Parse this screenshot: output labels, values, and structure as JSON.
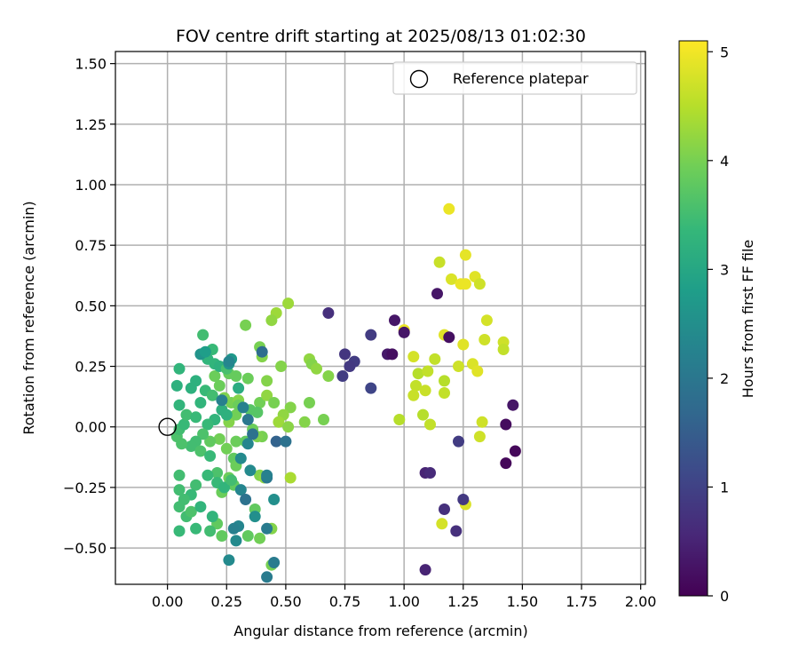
{
  "chart_data": {
    "type": "scatter",
    "title": "FOV centre drift starting at 2025/08/13 01:02:30",
    "xlabel": "Angular distance from reference (arcmin)",
    "ylabel": "Rotation from reference (arcmin)",
    "xlim": [
      -0.22,
      2.02
    ],
    "ylim": [
      -0.65,
      1.55
    ],
    "xticks": [
      0.0,
      0.25,
      0.5,
      0.75,
      1.0,
      1.25,
      1.5,
      1.75,
      2.0
    ],
    "yticks": [
      -0.5,
      -0.25,
      0.0,
      0.25,
      0.5,
      0.75,
      1.0,
      1.25,
      1.5
    ],
    "xtick_labels": [
      "0.00",
      "0.25",
      "0.50",
      "0.75",
      "1.00",
      "1.25",
      "1.50",
      "1.75",
      "2.00"
    ],
    "ytick_labels": [
      "−0.50",
      "−0.25",
      "0.00",
      "0.25",
      "0.50",
      "0.75",
      "1.00",
      "1.25",
      "1.50"
    ],
    "grid": true,
    "colormap": "viridis",
    "colorbar": {
      "label": "Hours from first FF file",
      "range": [
        0,
        5.1
      ],
      "ticks": [
        0,
        1,
        2,
        3,
        4,
        5
      ],
      "tick_labels": [
        "0",
        "1",
        "2",
        "3",
        "4",
        "5"
      ]
    },
    "legend": {
      "position": "upper-right",
      "entries": [
        {
          "label": "Reference platepar",
          "marker": "open-circle",
          "x": 0.0,
          "y": 0.0
        }
      ]
    },
    "series": [
      {
        "points": [
          [
            1.19,
            0.9,
            4.95
          ],
          [
            1.26,
            0.71,
            4.9
          ],
          [
            1.15,
            0.68,
            4.65
          ],
          [
            1.2,
            0.61,
            4.8
          ],
          [
            1.24,
            0.59,
            4.95
          ],
          [
            1.26,
            0.59,
            4.95
          ],
          [
            1.3,
            0.62,
            4.85
          ],
          [
            1.32,
            0.59,
            4.7
          ],
          [
            1.35,
            0.44,
            4.75
          ],
          [
            1.17,
            0.38,
            4.85
          ],
          [
            1.25,
            0.34,
            4.85
          ],
          [
            1.34,
            0.36,
            4.7
          ],
          [
            1.42,
            0.35,
            4.7
          ],
          [
            1.42,
            0.32,
            4.6
          ],
          [
            1.0,
            0.4,
            4.95
          ],
          [
            1.04,
            0.29,
            4.75
          ],
          [
            1.13,
            0.28,
            4.6
          ],
          [
            1.23,
            0.25,
            4.7
          ],
          [
            1.29,
            0.26,
            4.8
          ],
          [
            1.31,
            0.23,
            4.85
          ],
          [
            1.06,
            0.22,
            4.5
          ],
          [
            1.1,
            0.23,
            4.6
          ],
          [
            1.05,
            0.17,
            4.6
          ],
          [
            1.09,
            0.15,
            4.65
          ],
          [
            1.04,
            0.13,
            4.65
          ],
          [
            1.17,
            0.19,
            4.5
          ],
          [
            1.17,
            0.14,
            4.6
          ],
          [
            0.98,
            0.03,
            4.5
          ],
          [
            1.08,
            0.05,
            4.5
          ],
          [
            1.11,
            0.01,
            4.6
          ],
          [
            1.33,
            0.02,
            4.7
          ],
          [
            1.32,
            -0.04,
            4.7
          ],
          [
            1.26,
            -0.32,
            4.8
          ],
          [
            1.16,
            -0.4,
            4.75
          ],
          [
            1.19,
            0.37,
            0.2
          ],
          [
            1.14,
            0.55,
            0.3
          ],
          [
            0.96,
            0.44,
            0.3
          ],
          [
            0.93,
            0.3,
            0.35
          ],
          [
            0.95,
            0.3,
            0.2
          ],
          [
            1.0,
            0.39,
            0.3
          ],
          [
            1.46,
            0.09,
            0.3
          ],
          [
            1.43,
            0.01,
            0.15
          ],
          [
            1.47,
            -0.1,
            0.1
          ],
          [
            1.43,
            -0.15,
            0.1
          ],
          [
            1.23,
            -0.06,
            0.9
          ],
          [
            1.09,
            -0.19,
            0.5
          ],
          [
            1.11,
            -0.19,
            0.6
          ],
          [
            1.17,
            -0.34,
            0.7
          ],
          [
            1.25,
            -0.3,
            0.85
          ],
          [
            1.22,
            -0.43,
            0.7
          ],
          [
            1.09,
            -0.59,
            0.5
          ],
          [
            0.68,
            0.47,
            0.7
          ],
          [
            0.75,
            0.3,
            0.8
          ],
          [
            0.79,
            0.27,
            0.9
          ],
          [
            0.77,
            0.25,
            0.85
          ],
          [
            0.74,
            0.21,
            0.9
          ],
          [
            0.86,
            0.38,
            0.9
          ],
          [
            0.86,
            0.16,
            1.05
          ],
          [
            0.51,
            0.51,
            4.3
          ],
          [
            0.46,
            0.47,
            4.3
          ],
          [
            0.44,
            0.44,
            4.2
          ],
          [
            0.33,
            0.42,
            4.0
          ],
          [
            0.6,
            0.28,
            4.2
          ],
          [
            0.61,
            0.26,
            4.1
          ],
          [
            0.63,
            0.24,
            4.2
          ],
          [
            0.68,
            0.21,
            4.1
          ],
          [
            0.48,
            0.25,
            4.1
          ],
          [
            0.39,
            0.33,
            4.0
          ],
          [
            0.4,
            0.29,
            4.1
          ],
          [
            0.34,
            0.2,
            3.9
          ],
          [
            0.39,
            0.1,
            3.95
          ],
          [
            0.42,
            0.19,
            4.1
          ],
          [
            0.42,
            0.13,
            4.2
          ],
          [
            0.45,
            0.1,
            4.0
          ],
          [
            0.52,
            0.08,
            4.1
          ],
          [
            0.49,
            0.05,
            4.2
          ],
          [
            0.47,
            0.02,
            4.3
          ],
          [
            0.6,
            0.1,
            4.0
          ],
          [
            0.58,
            0.02,
            4.1
          ],
          [
            0.66,
            0.03,
            4.0
          ],
          [
            0.51,
            0.0,
            4.15
          ],
          [
            0.52,
            -0.21,
            4.4
          ],
          [
            0.4,
            -0.04,
            4.0
          ],
          [
            0.39,
            -0.2,
            4.1
          ],
          [
            0.41,
            -0.21,
            4.2
          ],
          [
            0.44,
            -0.42,
            4.1
          ],
          [
            0.44,
            -0.57,
            4.0
          ],
          [
            0.39,
            -0.46,
            3.95
          ],
          [
            0.37,
            -0.34,
            3.8
          ],
          [
            0.29,
            -0.06,
            3.9
          ],
          [
            0.28,
            -0.13,
            3.8
          ],
          [
            0.29,
            -0.16,
            3.9
          ],
          [
            0.26,
            -0.21,
            3.9
          ],
          [
            0.28,
            -0.24,
            3.8
          ],
          [
            0.23,
            -0.27,
            3.9
          ],
          [
            0.21,
            -0.4,
            3.8
          ],
          [
            0.23,
            -0.45,
            3.8
          ],
          [
            0.34,
            -0.45,
            3.8
          ],
          [
            0.25,
            -0.09,
            3.95
          ],
          [
            0.22,
            -0.05,
            3.95
          ],
          [
            0.26,
            0.02,
            4.1
          ],
          [
            0.27,
            0.1,
            4.0
          ],
          [
            0.24,
            0.12,
            4.05
          ],
          [
            0.3,
            0.11,
            4.1
          ],
          [
            0.29,
            0.05,
            3.95
          ],
          [
            0.22,
            0.17,
            3.9
          ],
          [
            0.2,
            0.21,
            3.9
          ],
          [
            0.26,
            0.22,
            3.85
          ],
          [
            0.29,
            0.21,
            3.85
          ],
          [
            0.3,
            0.09,
            3.9
          ],
          [
            0.35,
            0.07,
            3.7
          ],
          [
            0.38,
            0.06,
            3.7
          ],
          [
            0.36,
            -0.01,
            3.9
          ],
          [
            0.38,
            -0.04,
            4.05
          ],
          [
            0.33,
            -0.06,
            3.8
          ],
          [
            0.21,
            -0.19,
            3.6
          ],
          [
            0.18,
            -0.06,
            3.8
          ],
          [
            0.15,
            0.38,
            3.5
          ],
          [
            0.19,
            0.32,
            3.4
          ],
          [
            0.2,
            0.26,
            3.3
          ],
          [
            0.22,
            0.25,
            3.2
          ],
          [
            0.25,
            0.24,
            3.55
          ],
          [
            0.17,
            0.28,
            3.3
          ],
          [
            0.16,
            0.15,
            3.4
          ],
          [
            0.14,
            0.1,
            3.3
          ],
          [
            0.19,
            0.13,
            3.5
          ],
          [
            0.23,
            0.07,
            3.2
          ],
          [
            0.25,
            0.05,
            3.2
          ],
          [
            0.2,
            0.03,
            3.3
          ],
          [
            0.17,
            0.01,
            3.4
          ],
          [
            0.15,
            -0.03,
            3.6
          ],
          [
            0.12,
            -0.06,
            3.5
          ],
          [
            0.1,
            -0.08,
            3.5
          ],
          [
            0.14,
            -0.1,
            3.6
          ],
          [
            0.18,
            -0.12,
            3.4
          ],
          [
            0.21,
            -0.23,
            3.4
          ],
          [
            0.24,
            -0.25,
            3.3
          ],
          [
            0.27,
            -0.22,
            3.5
          ],
          [
            0.17,
            -0.2,
            3.4
          ],
          [
            0.12,
            -0.24,
            3.5
          ],
          [
            0.1,
            -0.28,
            3.4
          ],
          [
            0.07,
            -0.3,
            3.5
          ],
          [
            0.05,
            -0.33,
            3.5
          ],
          [
            0.08,
            -0.37,
            3.5
          ],
          [
            0.1,
            -0.35,
            3.6
          ],
          [
            0.14,
            -0.33,
            3.3
          ],
          [
            0.12,
            -0.42,
            3.4
          ],
          [
            0.18,
            -0.43,
            3.5
          ],
          [
            0.19,
            -0.37,
            3.3
          ],
          [
            0.05,
            -0.43,
            3.4
          ],
          [
            0.05,
            -0.26,
            3.5
          ],
          [
            0.05,
            -0.2,
            3.5
          ],
          [
            0.06,
            -0.07,
            3.6
          ],
          [
            0.04,
            -0.04,
            3.6
          ],
          [
            0.05,
            -0.01,
            3.5
          ],
          [
            0.07,
            0.01,
            3.4
          ],
          [
            0.08,
            0.05,
            3.5
          ],
          [
            0.05,
            0.09,
            3.3
          ],
          [
            0.04,
            0.17,
            3.2
          ],
          [
            0.05,
            0.24,
            3.3
          ],
          [
            0.1,
            0.16,
            3.2
          ],
          [
            0.12,
            0.19,
            3.2
          ],
          [
            0.12,
            0.04,
            3.4
          ],
          [
            0.3,
            0.16,
            3.1
          ],
          [
            0.27,
            0.28,
            2.7
          ],
          [
            0.26,
            0.26,
            2.6
          ],
          [
            0.14,
            0.3,
            2.6
          ],
          [
            0.16,
            0.31,
            2.8
          ],
          [
            0.31,
            -0.13,
            2.4
          ],
          [
            0.35,
            -0.18,
            2.4
          ],
          [
            0.31,
            -0.26,
            2.3
          ],
          [
            0.37,
            -0.37,
            2.5
          ],
          [
            0.42,
            -0.42,
            2.1
          ],
          [
            0.42,
            -0.62,
            2.1
          ],
          [
            0.45,
            -0.56,
            2.1
          ],
          [
            0.26,
            -0.55,
            2.4
          ],
          [
            0.3,
            -0.41,
            2.3
          ],
          [
            0.28,
            -0.42,
            2.2
          ],
          [
            0.29,
            -0.47,
            2.4
          ],
          [
            0.33,
            -0.3,
            1.9
          ],
          [
            0.42,
            -0.21,
            2.0
          ],
          [
            0.42,
            -0.2,
            2.2
          ],
          [
            0.4,
            0.31,
            1.8
          ],
          [
            0.46,
            -0.06,
            1.6
          ],
          [
            0.5,
            -0.06,
            1.9
          ],
          [
            0.45,
            -0.3,
            2.5
          ],
          [
            0.34,
            -0.07,
            2.3
          ],
          [
            0.34,
            0.03,
            2.0
          ],
          [
            0.36,
            -0.03,
            1.9
          ],
          [
            0.26,
            0.27,
            2.3
          ],
          [
            0.23,
            0.11,
            2.2
          ],
          [
            0.32,
            0.08,
            2.2
          ]
        ]
      }
    ]
  }
}
